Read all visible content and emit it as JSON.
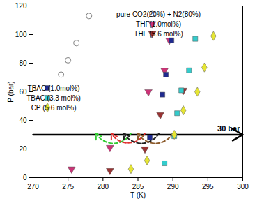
{
  "chart_data": {
    "type": "scatter",
    "xlabel": "T (K)",
    "ylabel": "P (bar)",
    "xlim": [
      270,
      300
    ],
    "xticks": [
      270,
      275,
      280,
      285,
      290,
      295,
      300
    ],
    "ylim": [
      0,
      120
    ],
    "yticks": [
      0,
      20,
      40,
      60,
      80,
      100,
      120
    ],
    "legend": "upper right",
    "series": [
      {
        "name": "pure CO2(20%) + N2(80%)",
        "color": "#808080",
        "marker": "circle-open",
        "x": [
          274.0,
          275.0,
          276.2,
          278.0
        ],
        "values": [
          72,
          82,
          94,
          113
        ]
      },
      {
        "name": "THF(1.0mol%)",
        "color": "#cc3377",
        "marker": "triangle-down",
        "x": [
          275.5,
          281.0,
          286.5,
          288.8,
          289.5
        ],
        "values": [
          6,
          21,
          60,
          75,
          96
        ]
      },
      {
        "name": "THF (5.6 mol%)",
        "color": "#993333",
        "marker": "triangle-down",
        "x": [
          281.0,
          286.0,
          288.2,
          291.5
        ],
        "values": [
          5,
          20,
          44,
          61
        ]
      },
      {
        "name": "TBAC (1.0mol%)",
        "color": "#1f2a8f",
        "marker": "square",
        "x": [
          286.7,
          288.5,
          289.0,
          289.8
        ],
        "values": [
          28,
          58,
          72,
          96
        ]
      },
      {
        "name": "TBAC (3.3 mol%)",
        "color": "#33cccc",
        "marker": "square",
        "x": [
          288.8,
          290.2,
          290.6,
          291.2,
          292.3,
          293.2
        ],
        "values": [
          10,
          29,
          45,
          61,
          75,
          97
        ]
      },
      {
        "name": "CP (5.6 mol%)",
        "color": "#e6e633",
        "marker": "diamond",
        "x": [
          284.0,
          286.3,
          290.2,
          291.5,
          293.5,
          294.5,
          295.8
        ],
        "values": [
          6,
          12,
          30,
          47,
          60,
          77,
          99
        ]
      }
    ],
    "reference_line": {
      "y": 30,
      "label": "30 bar",
      "color": "#000000"
    },
    "shift_arrows": [
      {
        "x_start": 284.0,
        "x_end": 279.0,
        "y": 31,
        "color": "#33cc33",
        "line_style": "dashed"
      },
      {
        "x_start": 286.0,
        "x_end": 281.2,
        "y": 31,
        "color": "#e03030",
        "line_style": "dashed"
      },
      {
        "x_start": 288.0,
        "x_end": 283.0,
        "y": 31,
        "color": "#202020",
        "line_style": "dashed"
      },
      {
        "x_start": 290.0,
        "x_end": 285.0,
        "y": 31,
        "color": "#8b5a2b",
        "line_style": "dashed"
      }
    ]
  }
}
